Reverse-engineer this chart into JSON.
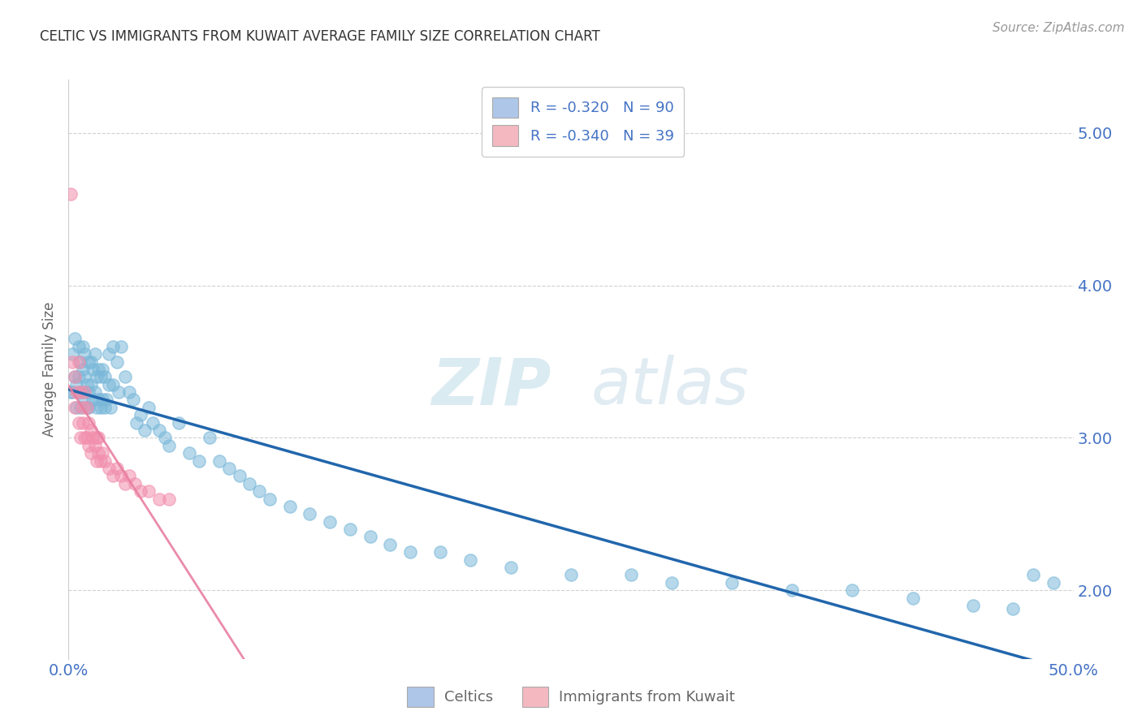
{
  "title": "CELTIC VS IMMIGRANTS FROM KUWAIT AVERAGE FAMILY SIZE CORRELATION CHART",
  "source": "Source: ZipAtlas.com",
  "ylabel": "Average Family Size",
  "yticks": [
    2.0,
    3.0,
    4.0,
    5.0
  ],
  "watermark_zip": "ZIP",
  "watermark_atlas": "atlas",
  "legend_entries": [
    {
      "label_r": "R = ",
      "r_val": "-0.320",
      "label_n": "   N = ",
      "n_val": "90",
      "color": "#aec6e8"
    },
    {
      "label_r": "R = ",
      "r_val": "-0.340",
      "label_n": "   N = ",
      "n_val": "39",
      "color": "#f4b8c1"
    }
  ],
  "legend_bottom": [
    {
      "label": "Celtics",
      "color": "#aec6e8"
    },
    {
      "label": "Immigrants from Kuwait",
      "color": "#f4b8c1"
    }
  ],
  "celtic_color": "#7ab8d9",
  "kuwait_color": "#f28fad",
  "celtic_trend_color": "#2166ac",
  "kuwait_trend_color": "#e87fa0",
  "celtic_x": [
    0.001,
    0.002,
    0.002,
    0.003,
    0.003,
    0.004,
    0.004,
    0.005,
    0.005,
    0.006,
    0.006,
    0.006,
    0.007,
    0.007,
    0.007,
    0.008,
    0.008,
    0.008,
    0.009,
    0.009,
    0.01,
    0.01,
    0.01,
    0.011,
    0.011,
    0.012,
    0.012,
    0.013,
    0.013,
    0.014,
    0.014,
    0.015,
    0.015,
    0.016,
    0.016,
    0.017,
    0.017,
    0.018,
    0.018,
    0.019,
    0.02,
    0.02,
    0.021,
    0.022,
    0.022,
    0.024,
    0.025,
    0.026,
    0.028,
    0.03,
    0.032,
    0.034,
    0.036,
    0.038,
    0.04,
    0.042,
    0.045,
    0.048,
    0.05,
    0.055,
    0.06,
    0.065,
    0.07,
    0.075,
    0.08,
    0.085,
    0.09,
    0.095,
    0.1,
    0.11,
    0.12,
    0.13,
    0.14,
    0.15,
    0.16,
    0.17,
    0.185,
    0.2,
    0.22,
    0.25,
    0.28,
    0.3,
    0.33,
    0.36,
    0.39,
    0.42,
    0.45,
    0.47,
    0.48,
    0.49
  ],
  "celtic_y": [
    3.3,
    3.55,
    3.3,
    3.4,
    3.65,
    3.35,
    3.2,
    3.4,
    3.6,
    3.3,
    3.2,
    3.5,
    3.3,
    3.45,
    3.6,
    3.25,
    3.4,
    3.55,
    3.2,
    3.35,
    3.3,
    3.5,
    3.2,
    3.35,
    3.5,
    3.25,
    3.45,
    3.3,
    3.55,
    3.2,
    3.4,
    3.25,
    3.45,
    3.2,
    3.4,
    3.25,
    3.45,
    3.2,
    3.4,
    3.25,
    3.35,
    3.55,
    3.2,
    3.35,
    3.6,
    3.5,
    3.3,
    3.6,
    3.4,
    3.3,
    3.25,
    3.1,
    3.15,
    3.05,
    3.2,
    3.1,
    3.05,
    3.0,
    2.95,
    3.1,
    2.9,
    2.85,
    3.0,
    2.85,
    2.8,
    2.75,
    2.7,
    2.65,
    2.6,
    2.55,
    2.5,
    2.45,
    2.4,
    2.35,
    2.3,
    2.25,
    2.25,
    2.2,
    2.15,
    2.1,
    2.1,
    2.05,
    2.05,
    2.0,
    2.0,
    1.95,
    1.9,
    1.88,
    2.1,
    2.05
  ],
  "kuwait_x": [
    0.001,
    0.002,
    0.003,
    0.003,
    0.004,
    0.005,
    0.005,
    0.006,
    0.006,
    0.007,
    0.007,
    0.008,
    0.008,
    0.009,
    0.009,
    0.01,
    0.01,
    0.011,
    0.011,
    0.012,
    0.013,
    0.014,
    0.014,
    0.015,
    0.015,
    0.016,
    0.017,
    0.018,
    0.02,
    0.022,
    0.024,
    0.026,
    0.028,
    0.03,
    0.033,
    0.036,
    0.04,
    0.045,
    0.05
  ],
  "kuwait_y": [
    4.6,
    3.5,
    3.4,
    3.2,
    3.3,
    3.5,
    3.1,
    3.3,
    3.0,
    3.2,
    3.1,
    3.3,
    3.0,
    3.2,
    3.0,
    3.1,
    2.95,
    3.05,
    2.9,
    3.0,
    2.95,
    3.0,
    2.85,
    2.9,
    3.0,
    2.85,
    2.9,
    2.85,
    2.8,
    2.75,
    2.8,
    2.75,
    2.7,
    2.75,
    2.7,
    2.65,
    2.65,
    2.6,
    2.6
  ],
  "xlim": [
    0.0,
    0.5
  ],
  "ylim": [
    1.55,
    5.35
  ],
  "background_color": "#ffffff",
  "grid_color": "#cccccc",
  "title_color": "#333333",
  "axis_color": "#4472c4",
  "tick_color": "#4472c4",
  "kuwait_trend_x_end": 0.14
}
